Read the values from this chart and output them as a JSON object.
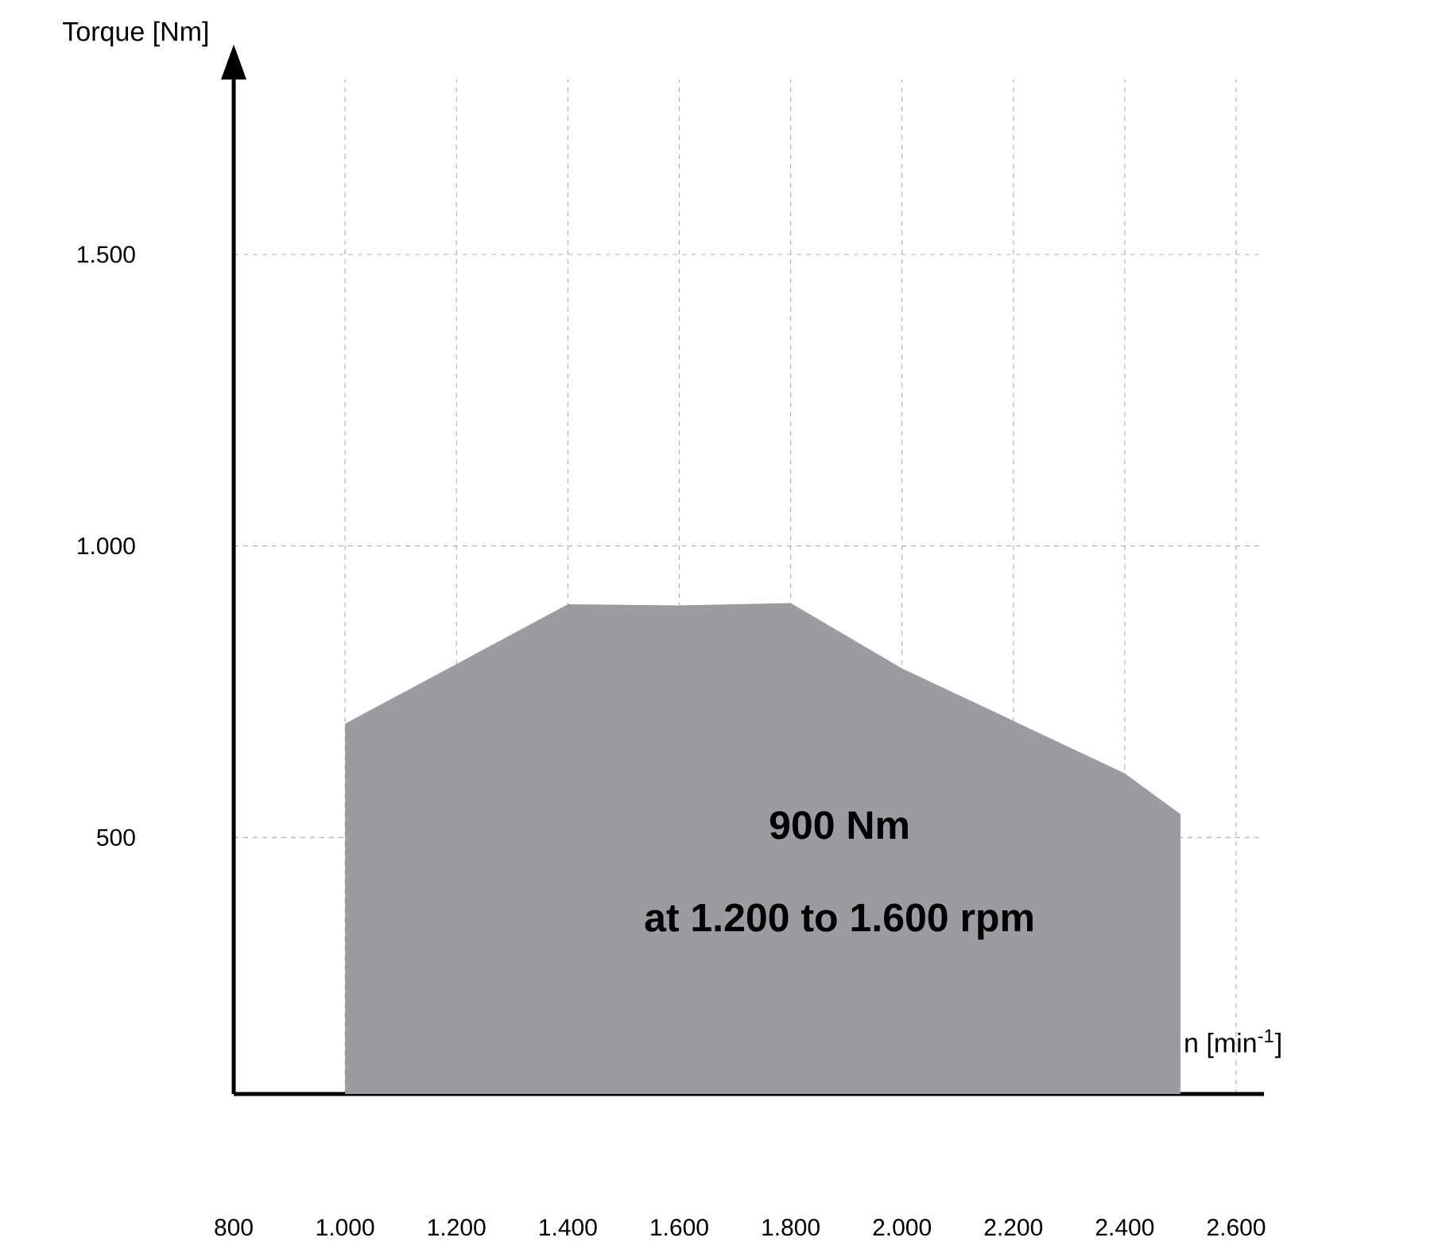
{
  "chart_data": {
    "type": "area",
    "xlabel": "n [min$^{-1}$]",
    "ylabel": "Torque [Nm]",
    "x": [
      1000,
      1400,
      1600,
      1800,
      2000,
      2400,
      2500
    ],
    "values": [
      695,
      900,
      898,
      902,
      790,
      610,
      540
    ],
    "color": "#9a9ca1",
    "xlim": [
      800,
      2650
    ],
    "ylim": [
      60,
      1800
    ],
    "xticks": [
      800,
      {
        "value": 1000,
        "label": "1.000"
      },
      {
        "value": 1200,
        "label": "1.200"
      },
      {
        "value": 1400,
        "label": "1.400"
      },
      {
        "value": 1600,
        "label": "1.600"
      },
      {
        "value": 1800,
        "label": "1.800"
      },
      {
        "value": 2000,
        "label": "2.000"
      },
      {
        "value": 2200,
        "label": "2.200"
      },
      {
        "value": 2400,
        "label": "2.400"
      },
      {
        "value": 2600,
        "label": "2.600"
      }
    ],
    "yticks": [
      500,
      {
        "value": 1000,
        "label": "1.000"
      },
      {
        "value": 1500,
        "label": "1.500"
      }
    ],
    "grid": true,
    "annotations": [
      "900 Nm",
      "at 1.200 to 1.600 rpm"
    ]
  }
}
